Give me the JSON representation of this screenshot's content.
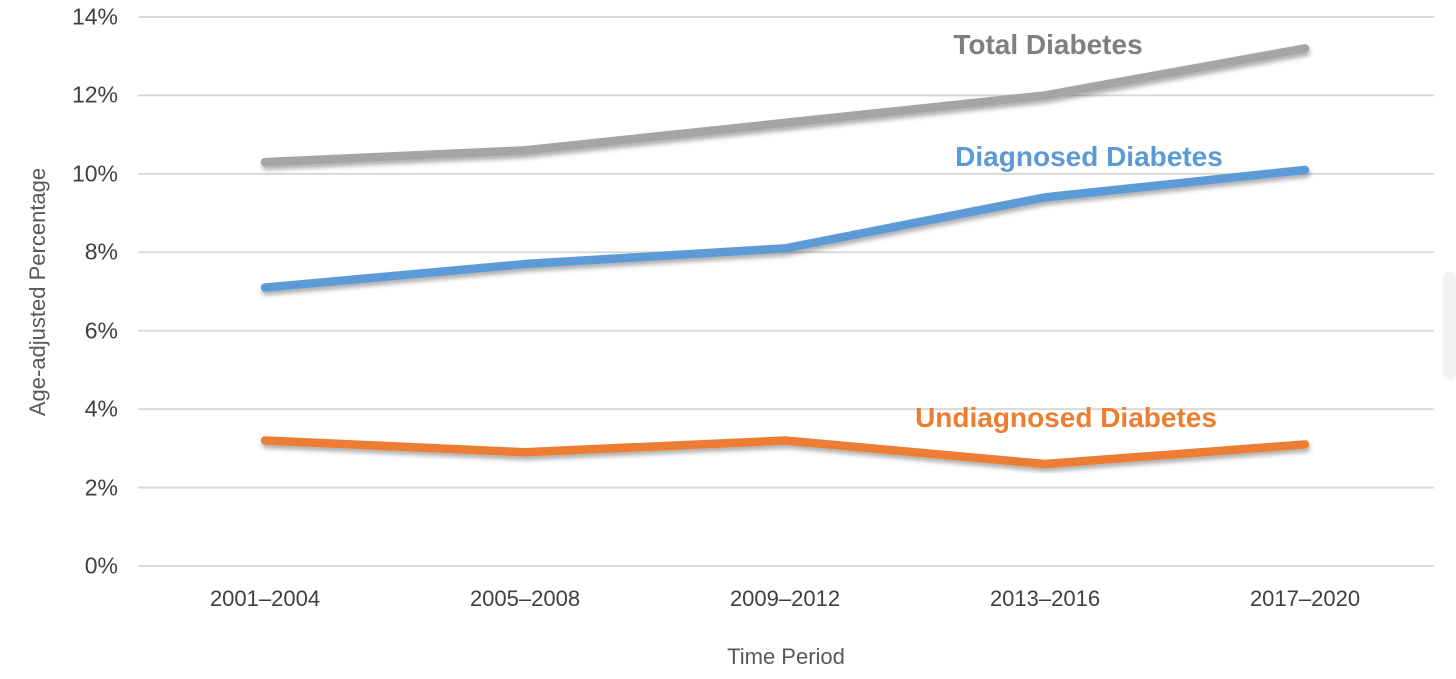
{
  "chart_data": {
    "type": "line",
    "title": "",
    "xlabel": "Time Period",
    "ylabel": "Age-adjusted Percentage",
    "categories": [
      "2001–2004",
      "2005–2008",
      "2009–2012",
      "2013–2016",
      "2017–2020"
    ],
    "series": [
      {
        "name": "Total Diabetes",
        "values": [
          10.3,
          10.6,
          11.3,
          12.0,
          13.2
        ],
        "color": "#A5A5A5",
        "label_color": "#7F7F7F"
      },
      {
        "name": "Diagnosed Diabetes",
        "values": [
          7.1,
          7.7,
          8.1,
          9.4,
          10.1
        ],
        "color": "#5B9BD5",
        "label_color": "#5B9BD5"
      },
      {
        "name": "Undiagnosed Diabetes",
        "values": [
          3.2,
          2.9,
          3.2,
          2.6,
          3.1
        ],
        "color": "#ED7D31",
        "label_color": "#ED7D31"
      }
    ],
    "ylim": [
      0,
      14
    ],
    "ytick_step": 2,
    "ytick_labels": [
      "0%",
      "2%",
      "4%",
      "6%",
      "8%",
      "10%",
      "12%",
      "14%"
    ],
    "grid": true,
    "legend": "inline-labels"
  },
  "colors": {
    "background": "#FFFFFF",
    "gridline": "#D9D9D9",
    "tick_text": "#3F3F3F",
    "axis_title_text": "#595959"
  }
}
